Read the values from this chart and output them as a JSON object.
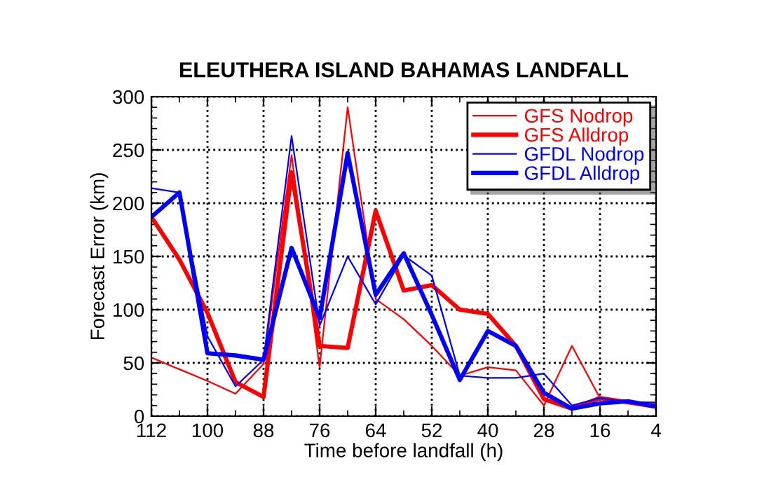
{
  "chart_data": {
    "type": "line",
    "title": "ELEUTHERA ISLAND BAHAMAS LANDFALL",
    "xlabel": "Time before landfall (h)",
    "ylabel": "Forecast Error (km)",
    "x": [
      112,
      106,
      100,
      94,
      88,
      82,
      76,
      70,
      64,
      58,
      52,
      46,
      40,
      34,
      28,
      22,
      16,
      10,
      4
    ],
    "series": [
      {
        "name": "GFS Nodrop",
        "color": "#ff0000",
        "values": [
          55,
          44,
          33,
          21,
          49,
          245,
          46,
          290,
          110,
          91,
          66,
          38,
          46,
          43,
          10,
          66,
          17,
          14,
          12
        ]
      },
      {
        "name": "GFS Alldrop",
        "color": "#ff0000",
        "values": [
          187,
          147,
          97,
          32,
          18,
          229,
          66,
          64,
          193,
          118,
          123,
          100,
          96,
          66,
          16,
          7,
          17,
          13,
          9
        ]
      },
      {
        "name": "GFDL Nodrop",
        "color": "#0000ff",
        "values": [
          214,
          210,
          75,
          28,
          53,
          263,
          85,
          150,
          105,
          151,
          132,
          38,
          36,
          36,
          40,
          10,
          17,
          13,
          13
        ]
      },
      {
        "name": "GFDL Alldrop",
        "color": "#0000ff",
        "values": [
          187,
          210,
          59,
          57,
          53,
          158,
          92,
          247,
          114,
          153,
          95,
          34,
          80,
          66,
          22,
          7,
          12,
          14,
          9
        ]
      }
    ],
    "xlim": [
      112,
      4
    ],
    "ylim": [
      0,
      300
    ],
    "xticks": [
      112,
      {
        "value": 106,
        "label": null
      },
      100,
      {
        "value": 94,
        "label": null
      },
      88,
      {
        "value": 82,
        "label": null
      },
      76,
      {
        "value": 70,
        "label": null
      },
      64,
      {
        "value": 58,
        "label": null
      },
      52,
      {
        "value": 46,
        "label": null
      },
      40,
      {
        "value": 34,
        "label": null
      },
      28,
      {
        "value": 22,
        "label": null
      },
      16,
      {
        "value": 10,
        "label": null
      },
      4
    ],
    "yticks": [
      0,
      {
        "value": 10,
        "label": null
      },
      {
        "value": 20,
        "label": null
      },
      {
        "value": 30,
        "label": null
      },
      {
        "value": 40,
        "label": null
      },
      50,
      {
        "value": 60,
        "label": null
      },
      {
        "value": 70,
        "label": null
      },
      {
        "value": 80,
        "label": null
      },
      {
        "value": 90,
        "label": null
      },
      100,
      {
        "value": 110,
        "label": null
      },
      {
        "value": 120,
        "label": null
      },
      {
        "value": 130,
        "label": null
      },
      {
        "value": 140,
        "label": null
      },
      150,
      {
        "value": 160,
        "label": null
      },
      {
        "value": 170,
        "label": null
      },
      {
        "value": 180,
        "label": null
      },
      {
        "value": 190,
        "label": null
      },
      200,
      {
        "value": 210,
        "label": null
      },
      {
        "value": 220,
        "label": null
      },
      {
        "value": 230,
        "label": null
      },
      {
        "value": 240,
        "label": null
      },
      250,
      {
        "value": 260,
        "label": null
      },
      {
        "value": 270,
        "label": null
      },
      {
        "value": 280,
        "label": null
      },
      {
        "value": 290,
        "label": null
      },
      300
    ],
    "grid": true,
    "legend": "top right",
    "marker": "none",
    "line_style": "solid"
  }
}
